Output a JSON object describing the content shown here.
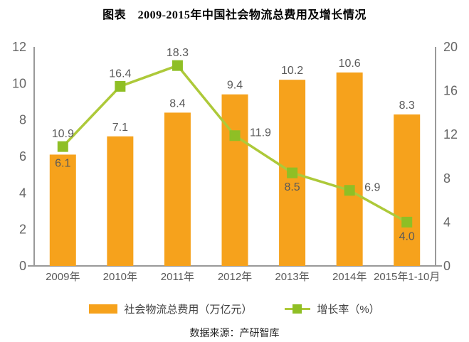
{
  "title": "图表　2009-2015年中国社会物流总费用及增长情况",
  "source": "数据来源：产研智库",
  "colors": {
    "bar": "#F6A21C",
    "line": "#ADC939",
    "marker": "#8FBF25",
    "axis": "#999999",
    "tick_text": "#666666",
    "label_text": "#595959",
    "x_label_text": "#595959"
  },
  "chart_data": {
    "type": "bar",
    "subtype": "bar-line-combo",
    "title": "图表　2009-2015年中国社会物流总费用及增长情况",
    "categories": [
      "2009年",
      "2010年",
      "2011年",
      "2012年",
      "2013年",
      "2014年",
      "2015年1-10月"
    ],
    "series": [
      {
        "name": "社会物流总费用（万亿元）",
        "type": "bar",
        "axis": "left",
        "values": [
          6.1,
          7.1,
          8.4,
          9.4,
          10.2,
          10.6,
          8.3
        ],
        "label_pos": [
          "inside-top",
          "above",
          "above",
          "above",
          "above",
          "above",
          "above"
        ]
      },
      {
        "name": "增长率（%）",
        "type": "line",
        "axis": "right",
        "values": [
          10.9,
          16.4,
          18.3,
          11.9,
          8.5,
          6.9,
          4.0
        ],
        "label_pos": [
          "above",
          "above",
          "above",
          "right",
          "below",
          "right",
          "below"
        ]
      }
    ],
    "left_axis": {
      "min": 0,
      "max": 12,
      "step": 2,
      "ticks": [
        0,
        2,
        4,
        6,
        8,
        10,
        12
      ]
    },
    "right_axis": {
      "min": 0,
      "max": 20,
      "step": 4,
      "ticks": [
        0,
        4,
        8,
        12,
        16,
        20
      ]
    },
    "grid": false,
    "legend_position": "bottom"
  }
}
